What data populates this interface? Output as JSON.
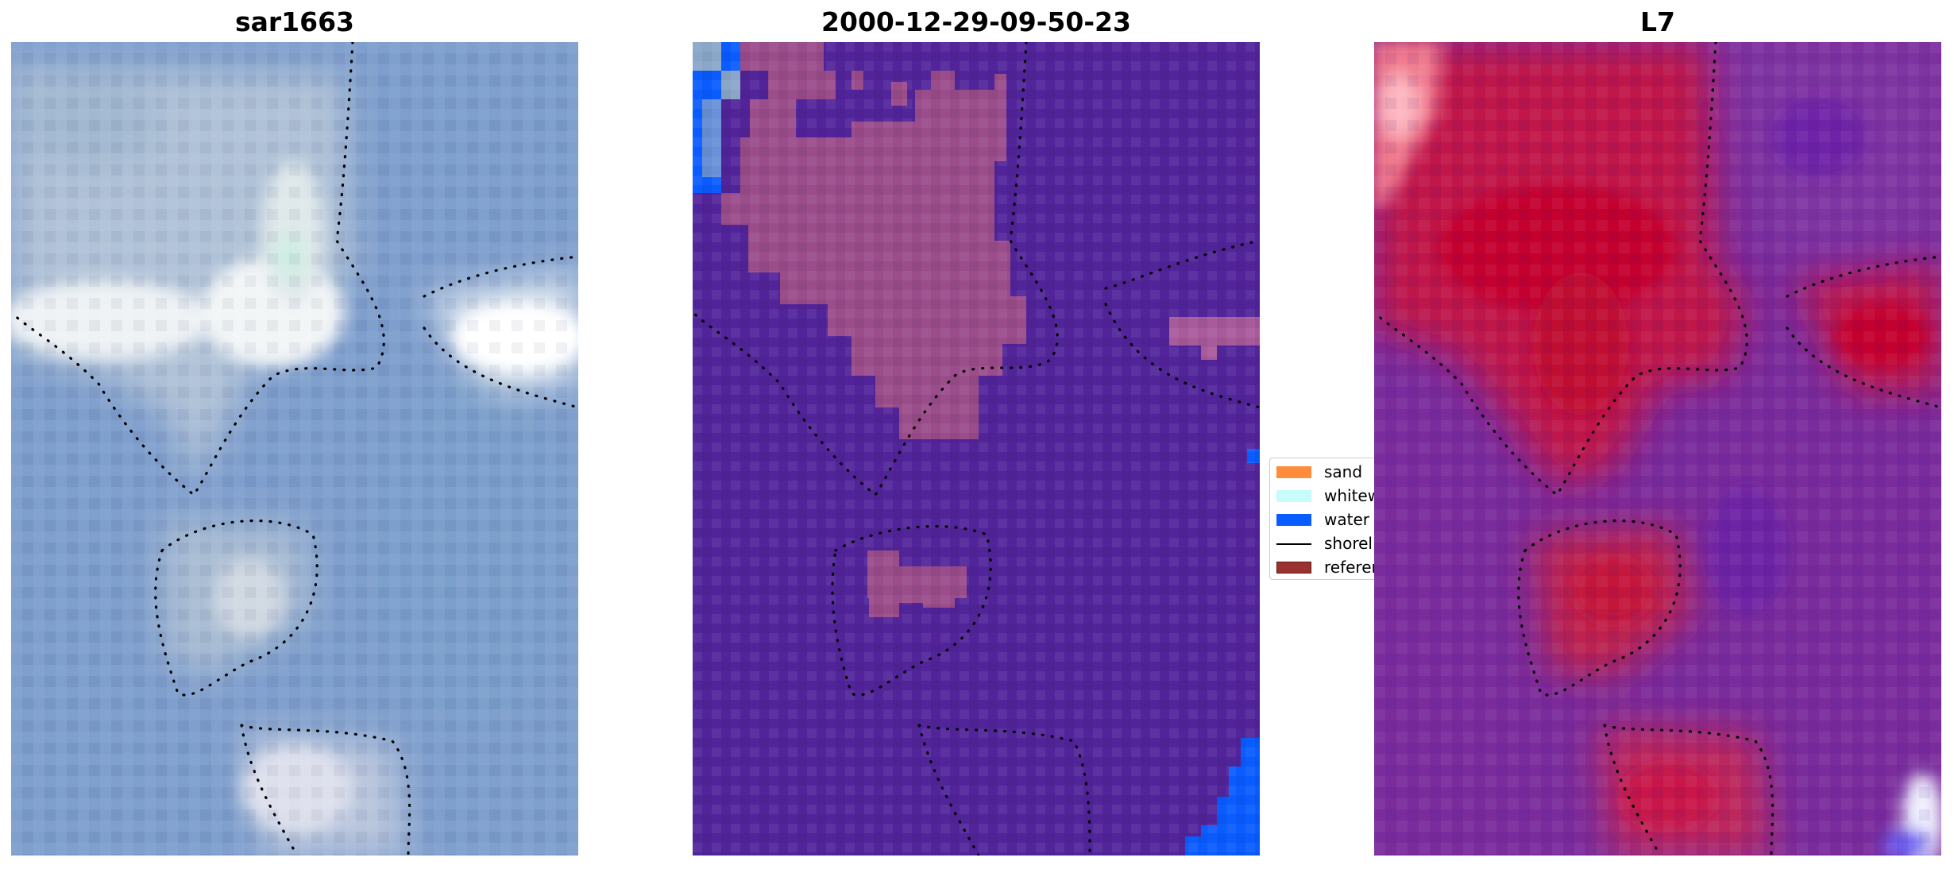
{
  "panels": {
    "sar": {
      "title": "sar1663"
    },
    "classified": {
      "title": "2000-12-29-09-50-23"
    },
    "l7": {
      "title": "L7"
    }
  },
  "legend": {
    "items": [
      {
        "label": "sand",
        "color": "#ff8c3a",
        "kind": "patch"
      },
      {
        "label": "whitew",
        "color": "#c8fbfb",
        "kind": "patch"
      },
      {
        "label": "water",
        "color": "#0a5cff",
        "kind": "patch"
      },
      {
        "label": "shorel",
        "color": "#000000",
        "kind": "line"
      },
      {
        "label": "referen",
        "color": "#9a3232",
        "kind": "patch"
      }
    ]
  },
  "colors": {
    "sar_background": "#7f9fcd",
    "sar_bright": "#f4f6f8",
    "classified_background": "#52249a",
    "classified_reference": "#9a4d8a",
    "classified_water": "#0a5cff",
    "l7_background": "#7a2c9c",
    "l7_hot": "#c8103c",
    "shoreline": "#000000"
  }
}
